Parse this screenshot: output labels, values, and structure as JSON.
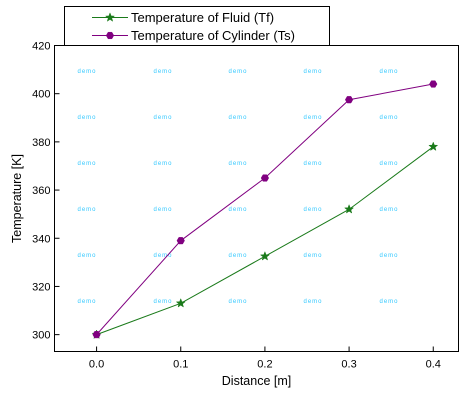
{
  "chart_data": {
    "type": "line",
    "x": [
      0.0,
      0.1,
      0.2,
      0.3,
      0.4
    ],
    "x_tick_labels": [
      "0.0",
      "0.1",
      "0.2",
      "0.3",
      "0.4"
    ],
    "y_tick_values": [
      300,
      320,
      340,
      360,
      380,
      400,
      420
    ],
    "y_tick_labels": [
      "300",
      "320",
      "340",
      "360",
      "380",
      "400",
      "420"
    ],
    "xlabel": "Distance [m]",
    "ylabel": "Temperature [K]",
    "xlim": [
      -0.05,
      0.43
    ],
    "ylim": [
      293,
      420
    ],
    "grid": false,
    "legend_position": "top-left",
    "watermark_text": "demo",
    "series": [
      {
        "name": "Temperature of Fluid (Tf)",
        "values": [
          300,
          313,
          332.5,
          352,
          378
        ],
        "color": "#1a7a1a",
        "marker": "star"
      },
      {
        "name": "Temperature of Cylinder (Ts)",
        "values": [
          300,
          339,
          365,
          397.5,
          404
        ],
        "color": "#800080",
        "marker": "hexagon"
      }
    ]
  }
}
